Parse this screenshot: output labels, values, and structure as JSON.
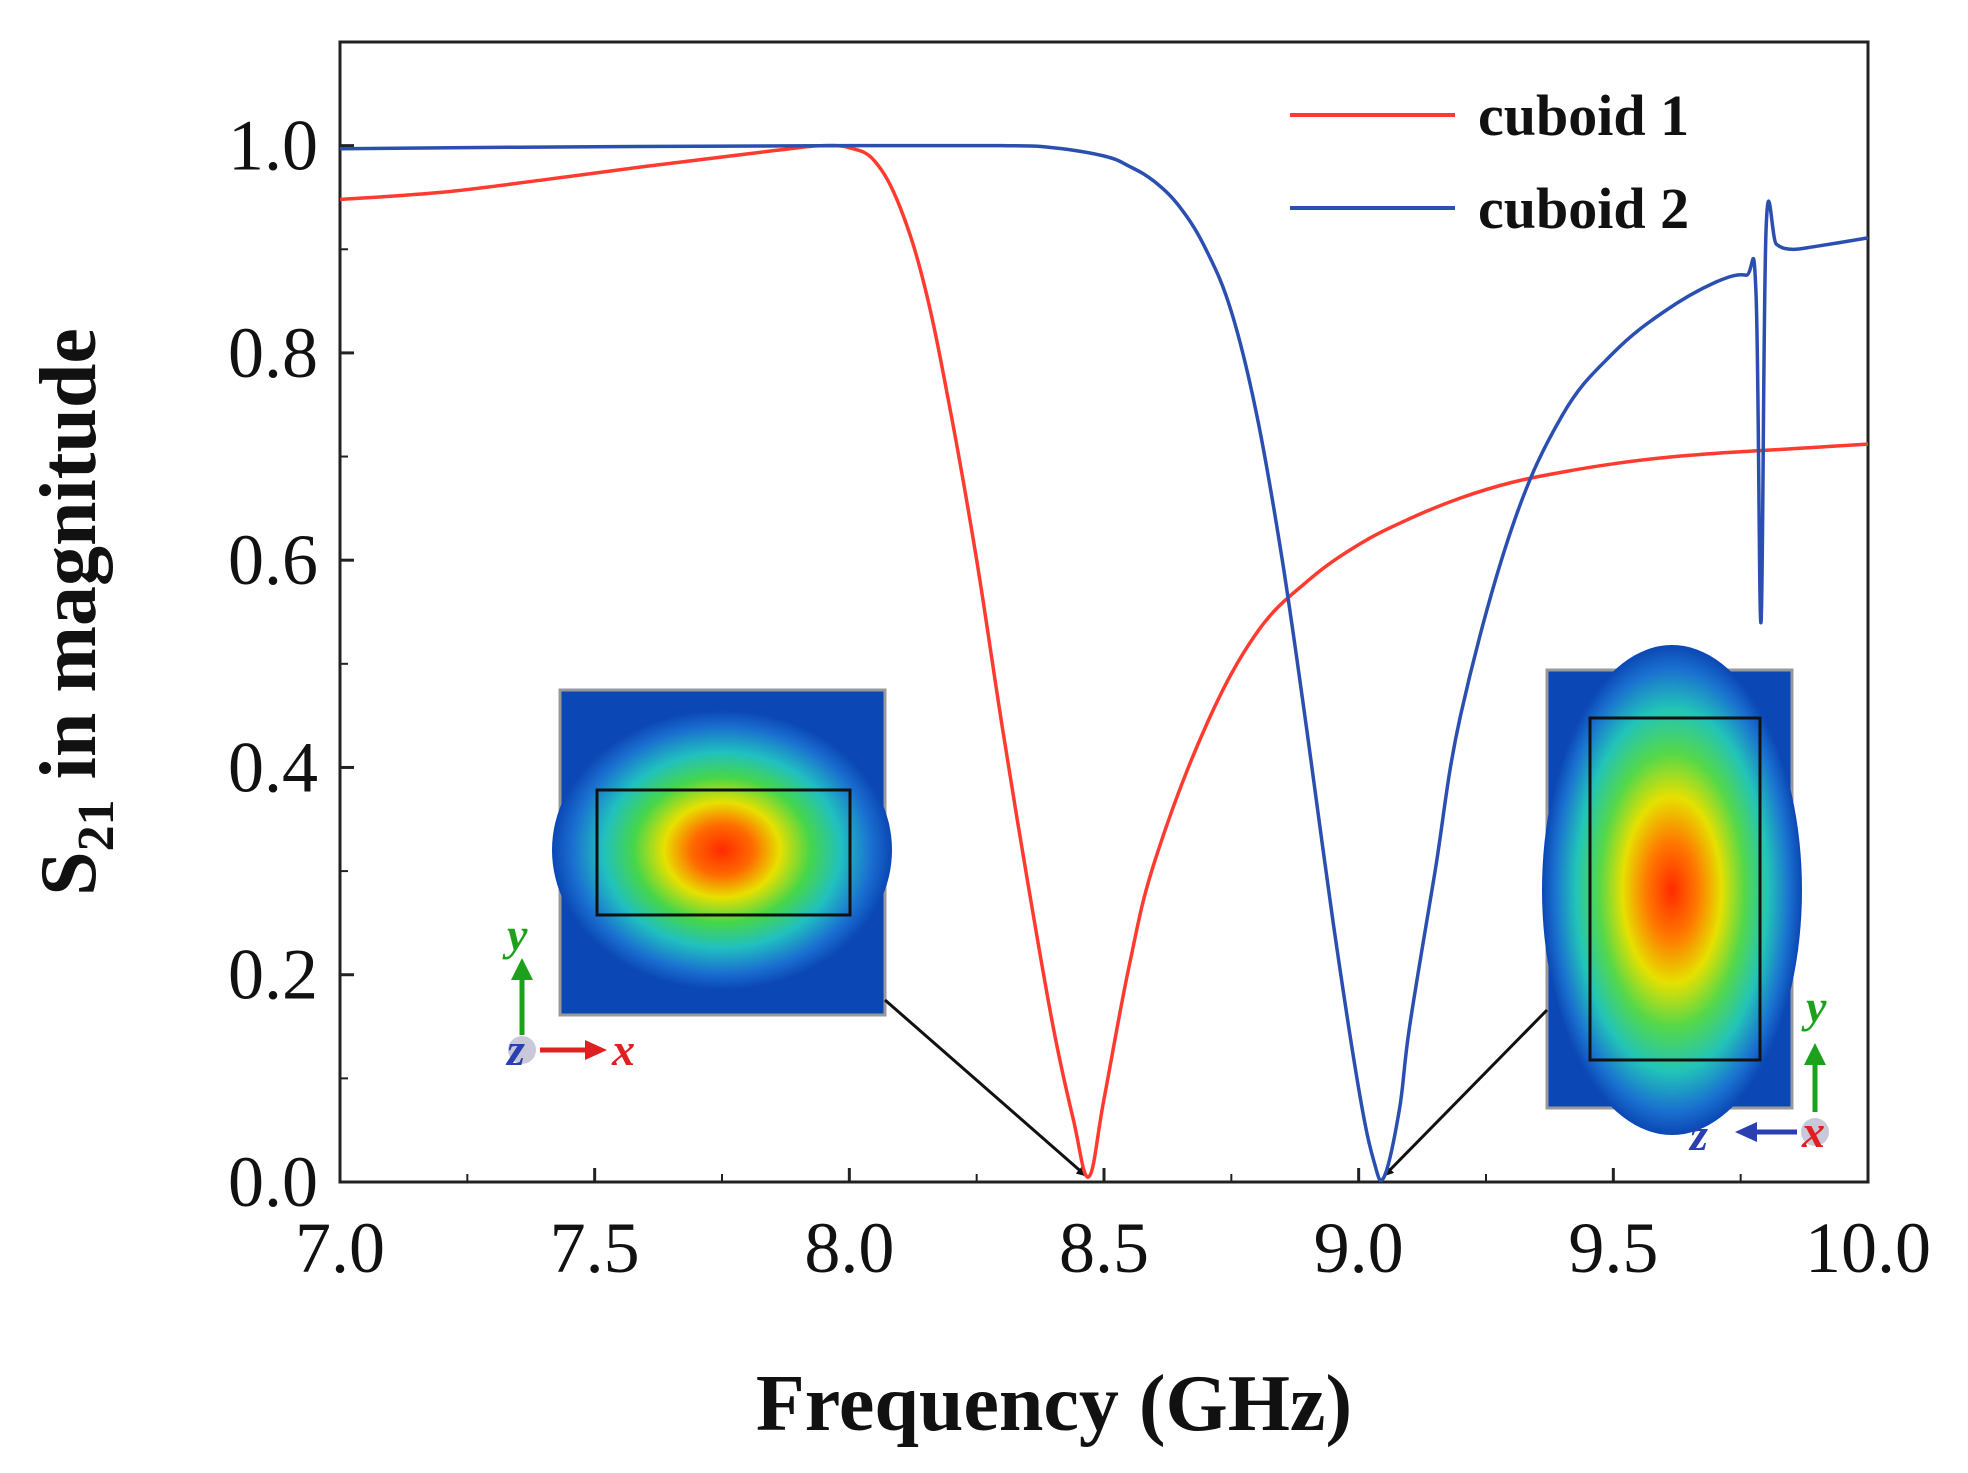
{
  "chart_data": {
    "type": "line",
    "title": "",
    "xlabel": "Frequency (GHz)",
    "ylabel": {
      "main": "S",
      "sub": "21",
      "rest": " in magnitude"
    },
    "xlim": [
      7.0,
      10.0
    ],
    "ylim": [
      0.0,
      1.1
    ],
    "xticks": [
      "7.0",
      "7.5",
      "8.0",
      "8.5",
      "9.0",
      "9.5",
      "10.0"
    ],
    "yticks": [
      "0.0",
      "0.2",
      "0.4",
      "0.6",
      "0.8",
      "1.0"
    ],
    "grid": false,
    "legend_position": "top-right",
    "series": [
      {
        "name": "cuboid 1",
        "color": "#ff3b30",
        "x": [
          7.0,
          7.2,
          7.4,
          7.6,
          7.8,
          7.9,
          7.95,
          8.0,
          8.05,
          8.1,
          8.15,
          8.2,
          8.25,
          8.3,
          8.35,
          8.4,
          8.44,
          8.47,
          8.5,
          8.55,
          8.6,
          8.7,
          8.8,
          8.9,
          9.0,
          9.1,
          9.2,
          9.3,
          9.4,
          9.5,
          9.6,
          9.7,
          9.8,
          9.9,
          10.0
        ],
        "y": [
          0.948,
          0.955,
          0.967,
          0.98,
          0.992,
          0.998,
          1.0,
          0.998,
          0.985,
          0.94,
          0.86,
          0.74,
          0.6,
          0.44,
          0.29,
          0.15,
          0.06,
          0.005,
          0.08,
          0.21,
          0.31,
          0.44,
          0.53,
          0.58,
          0.615,
          0.64,
          0.66,
          0.675,
          0.685,
          0.693,
          0.699,
          0.703,
          0.706,
          0.709,
          0.712
        ]
      },
      {
        "name": "cuboid 2",
        "color": "#2a4fb0",
        "x": [
          7.0,
          7.5,
          8.0,
          8.3,
          8.4,
          8.5,
          8.55,
          8.6,
          8.65,
          8.7,
          8.75,
          8.8,
          8.85,
          8.9,
          8.95,
          9.0,
          9.03,
          9.05,
          9.08,
          9.1,
          9.15,
          9.2,
          9.3,
          9.4,
          9.5,
          9.6,
          9.7,
          9.76,
          9.78,
          9.79,
          9.8,
          9.82,
          9.85,
          9.9,
          10.0
        ],
        "y": [
          0.997,
          0.999,
          1.0,
          1.0,
          0.998,
          0.99,
          0.98,
          0.965,
          0.94,
          0.9,
          0.84,
          0.74,
          0.6,
          0.43,
          0.25,
          0.09,
          0.02,
          0.005,
          0.07,
          0.15,
          0.3,
          0.45,
          0.63,
          0.74,
          0.8,
          0.84,
          0.868,
          0.875,
          0.86,
          0.54,
          0.92,
          0.905,
          0.9,
          0.903,
          0.911
        ]
      }
    ],
    "insets": [
      {
        "name": "cuboid 1 field map",
        "frequency": 8.47,
        "axis_up": "y",
        "axis_right": "x",
        "axis_out": "z"
      },
      {
        "name": "cuboid 2 field map",
        "frequency": 9.05,
        "axis_up": "y",
        "axis_left": "z",
        "axis_out": "x"
      }
    ]
  }
}
